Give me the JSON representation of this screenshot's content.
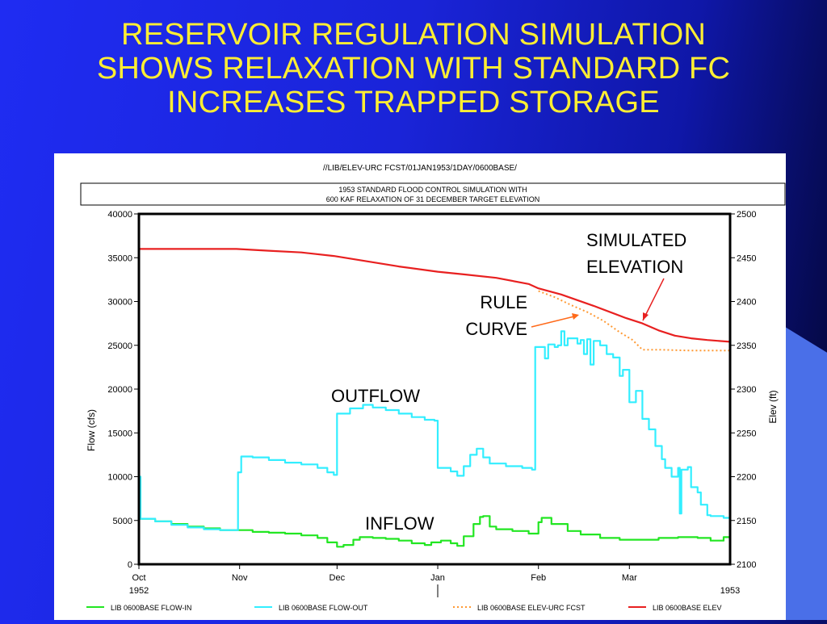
{
  "slide": {
    "title_lines": [
      "RESERVOIR REGULATION SIMULATION",
      "SHOWS RELAXATION WITH STANDARD FC",
      "INCREASES TRAPPED STORAGE"
    ],
    "accent_color": "#ffee33",
    "background_color": "#1a24d8"
  },
  "chart_data": {
    "type": "line",
    "path_label": "//LIB/ELEV-URC FCST/01JAN1953/1DAY/0600BASE/",
    "subtitle_lines": [
      "1953 STANDARD FLOOD CONTROL SIMULATION WITH",
      "600 KAF RELAXATION OF 31 DECEMBER TARGET ELEVATION"
    ],
    "ylabel": "Flow (cfs)",
    "y2label": "Elev (ft)",
    "ylim": [
      0,
      40000
    ],
    "y2lim": [
      2100,
      2500
    ],
    "y_ticks": [
      0,
      5000,
      10000,
      15000,
      20000,
      25000,
      30000,
      35000,
      40000
    ],
    "y2_ticks": [
      2100,
      2150,
      2200,
      2250,
      2300,
      2350,
      2400,
      2450,
      2500
    ],
    "xlim": [
      0,
      182
    ],
    "x_ticks": [
      {
        "day": 0,
        "label": "Oct"
      },
      {
        "day": 31,
        "label": "Nov"
      },
      {
        "day": 61,
        "label": "Dec"
      },
      {
        "day": 92,
        "label": "Jan"
      },
      {
        "day": 123,
        "label": "Feb"
      },
      {
        "day": 151,
        "label": "Mar"
      }
    ],
    "year_labels": [
      {
        "day": 0,
        "label": "1952"
      },
      {
        "day": 182,
        "label": "1953"
      }
    ],
    "annotations": [
      "SIMULATED\nELEVATION",
      "RULE\nCURVE",
      "OUTFLOW",
      "INFLOW"
    ],
    "series": [
      {
        "name": "LIB 0600BASE FLOW-IN",
        "axis": "left",
        "color": "#22e622",
        "step": true,
        "points": [
          [
            0,
            5200
          ],
          [
            5,
            4900
          ],
          [
            10,
            4600
          ],
          [
            15,
            4300
          ],
          [
            20,
            4100
          ],
          [
            25,
            3900
          ],
          [
            30,
            3900
          ],
          [
            35,
            3700
          ],
          [
            40,
            3600
          ],
          [
            45,
            3500
          ],
          [
            50,
            3300
          ],
          [
            55,
            3000
          ],
          [
            58,
            2500
          ],
          [
            61,
            2000
          ],
          [
            63,
            2200
          ],
          [
            66,
            2800
          ],
          [
            68,
            3100
          ],
          [
            72,
            3000
          ],
          [
            76,
            2900
          ],
          [
            80,
            2700
          ],
          [
            84,
            2400
          ],
          [
            88,
            2200
          ],
          [
            90,
            2500
          ],
          [
            93,
            2700
          ],
          [
            96,
            2400
          ],
          [
            98,
            2100
          ],
          [
            100,
            3200
          ],
          [
            103,
            4600
          ],
          [
            105,
            5400
          ],
          [
            106,
            5500
          ],
          [
            108,
            4300
          ],
          [
            110,
            4000
          ],
          [
            115,
            3800
          ],
          [
            120,
            3500
          ],
          [
            122,
            3500
          ],
          [
            123,
            4800
          ],
          [
            124,
            5300
          ],
          [
            127,
            4600
          ],
          [
            132,
            3800
          ],
          [
            136,
            3400
          ],
          [
            142,
            3000
          ],
          [
            148,
            2800
          ],
          [
            154,
            2800
          ],
          [
            160,
            3000
          ],
          [
            166,
            3100
          ],
          [
            172,
            3000
          ],
          [
            176,
            2700
          ],
          [
            180,
            3100
          ],
          [
            182,
            3200
          ]
        ]
      },
      {
        "name": "LIB 0600BASE FLOW-OUT",
        "axis": "left",
        "color": "#33eeff",
        "step": true,
        "points": [
          [
            0,
            10000
          ],
          [
            0.5,
            5200
          ],
          [
            5,
            4900
          ],
          [
            10,
            4500
          ],
          [
            15,
            4200
          ],
          [
            20,
            4000
          ],
          [
            25,
            3900
          ],
          [
            30,
            3900
          ],
          [
            30.5,
            10500
          ],
          [
            31.5,
            12300
          ],
          [
            35,
            12200
          ],
          [
            40,
            11900
          ],
          [
            45,
            11600
          ],
          [
            50,
            11400
          ],
          [
            55,
            11000
          ],
          [
            58,
            10500
          ],
          [
            60,
            10200
          ],
          [
            61,
            17200
          ],
          [
            65,
            17800
          ],
          [
            69,
            18200
          ],
          [
            72,
            17900
          ],
          [
            76,
            17600
          ],
          [
            80,
            17200
          ],
          [
            84,
            16800
          ],
          [
            88,
            16500
          ],
          [
            91,
            16400
          ],
          [
            92,
            11000
          ],
          [
            96,
            10600
          ],
          [
            98,
            10100
          ],
          [
            100,
            11200
          ],
          [
            102,
            12500
          ],
          [
            104,
            13200
          ],
          [
            106,
            12200
          ],
          [
            108,
            11500
          ],
          [
            113,
            11200
          ],
          [
            118,
            11000
          ],
          [
            121,
            10800
          ],
          [
            122,
            24800
          ],
          [
            125,
            23500
          ],
          [
            126,
            25100
          ],
          [
            128,
            24800
          ],
          [
            129,
            25000
          ],
          [
            130,
            26600
          ],
          [
            131,
            25000
          ],
          [
            132,
            25800
          ],
          [
            135,
            25200
          ],
          [
            136,
            25600
          ],
          [
            137,
            24000
          ],
          [
            138,
            25700
          ],
          [
            139,
            22800
          ],
          [
            140,
            25500
          ],
          [
            142,
            25000
          ],
          [
            144,
            24000
          ],
          [
            146,
            23600
          ],
          [
            148,
            21500
          ],
          [
            149,
            22200
          ],
          [
            151,
            18500
          ],
          [
            153,
            19800
          ],
          [
            155,
            16600
          ],
          [
            157,
            15400
          ],
          [
            159,
            13500
          ],
          [
            161,
            12000
          ],
          [
            162,
            11000
          ],
          [
            164,
            10000
          ],
          [
            166,
            11000
          ],
          [
            166.5,
            5800
          ],
          [
            167,
            10800
          ],
          [
            169,
            11100
          ],
          [
            170,
            8800
          ],
          [
            172,
            8200
          ],
          [
            173,
            6800
          ],
          [
            175,
            5600
          ],
          [
            176,
            5500
          ],
          [
            180,
            5300
          ],
          [
            182,
            5200
          ]
        ]
      },
      {
        "name": "LIB 0600BASE ELEV-URC FCST",
        "axis": "right",
        "color": "#ff9933",
        "dashed": true,
        "points": [
          [
            123,
            2412
          ],
          [
            128,
            2405
          ],
          [
            133,
            2396
          ],
          [
            138,
            2388
          ],
          [
            143,
            2378
          ],
          [
            148,
            2365
          ],
          [
            152,
            2356
          ],
          [
            155,
            2345
          ],
          [
            160,
            2345
          ],
          [
            170,
            2344
          ],
          [
            182,
            2344
          ]
        ]
      },
      {
        "name": "LIB 0600BASE ELEV",
        "axis": "right",
        "color": "#e82020",
        "points": [
          [
            0,
            2460
          ],
          [
            10,
            2460
          ],
          [
            20,
            2460
          ],
          [
            30,
            2460
          ],
          [
            40,
            2458
          ],
          [
            50,
            2456
          ],
          [
            60,
            2452
          ],
          [
            70,
            2446
          ],
          [
            80,
            2440
          ],
          [
            92,
            2434
          ],
          [
            100,
            2431
          ],
          [
            110,
            2427
          ],
          [
            120,
            2420
          ],
          [
            123,
            2415
          ],
          [
            130,
            2408
          ],
          [
            140,
            2395
          ],
          [
            150,
            2381
          ],
          [
            155,
            2375
          ],
          [
            160,
            2367
          ],
          [
            165,
            2361
          ],
          [
            170,
            2358
          ],
          [
            175,
            2356
          ],
          [
            182,
            2354
          ]
        ]
      }
    ]
  }
}
